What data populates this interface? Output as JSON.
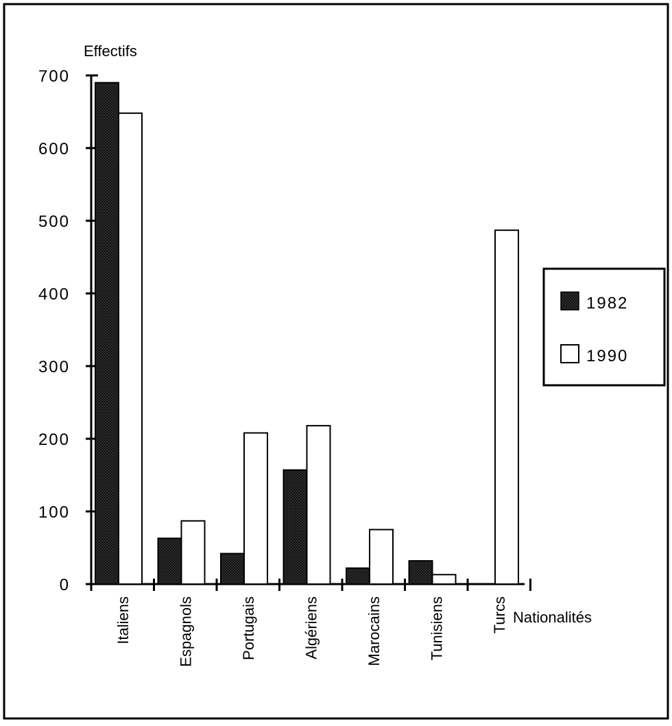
{
  "chart_data": {
    "type": "bar",
    "title": "",
    "ylabel": "Effectifs",
    "xlabel": "Nationalités",
    "ylim": [
      0,
      700
    ],
    "yticks": [
      0,
      100,
      200,
      300,
      400,
      500,
      600,
      700
    ],
    "categories": [
      "Italiens",
      "Espagnols",
      "Portugais",
      "Algériens",
      "Marocains",
      "Tunisiens",
      "Turcs"
    ],
    "series": [
      {
        "name": "1982",
        "color": "#222222",
        "values": [
          690,
          63,
          42,
          157,
          22,
          32,
          0
        ]
      },
      {
        "name": "1990",
        "color": "#ffffff",
        "values": [
          648,
          87,
          208,
          218,
          75,
          13,
          487
        ]
      }
    ],
    "grid": false,
    "legend_position": "right"
  }
}
